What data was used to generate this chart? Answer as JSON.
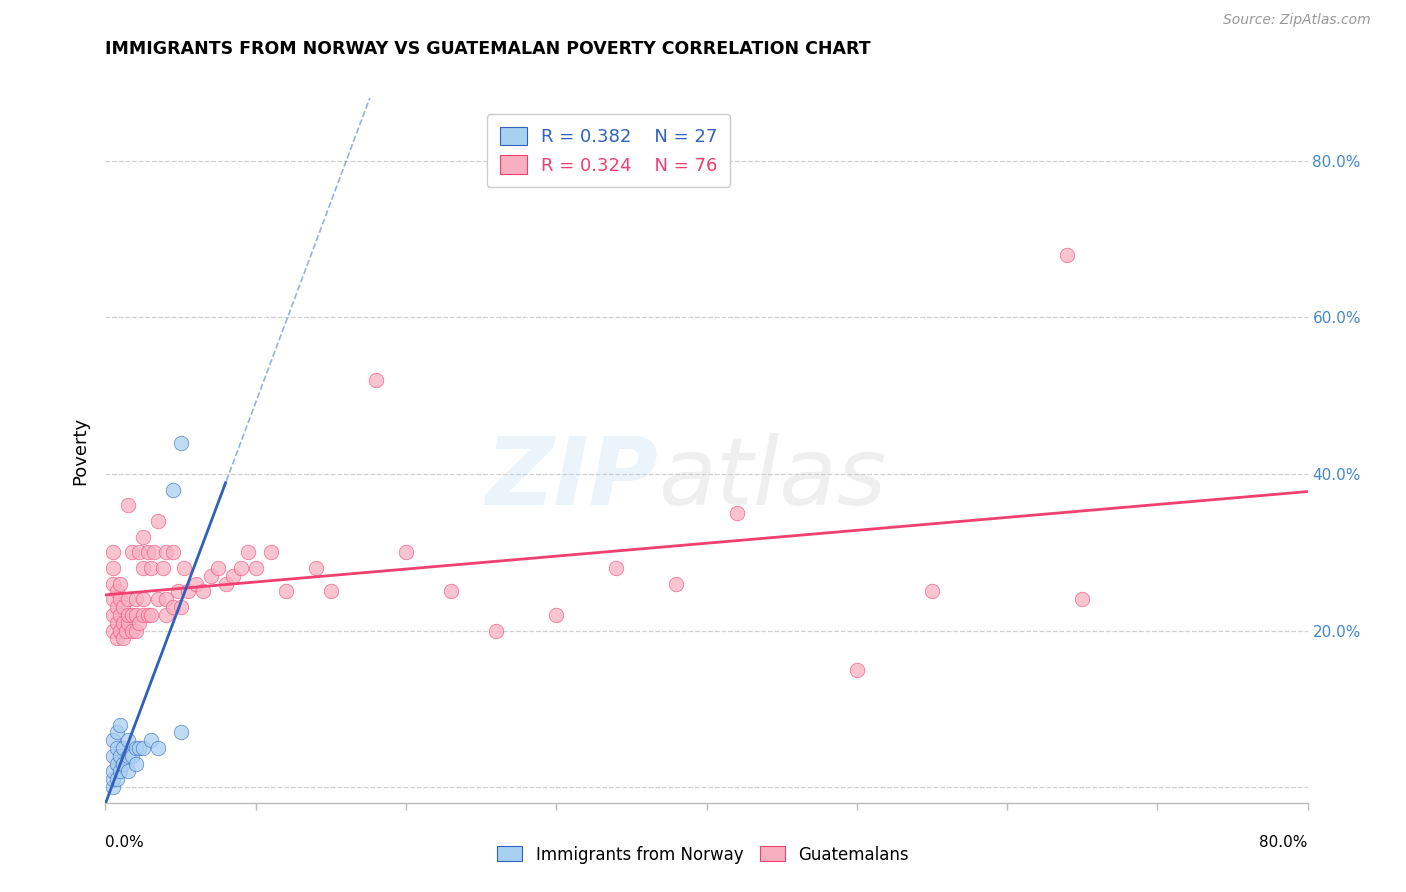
{
  "title": "IMMIGRANTS FROM NORWAY VS GUATEMALAN POVERTY CORRELATION CHART",
  "source": "Source: ZipAtlas.com",
  "ylabel": "Poverty",
  "xlim": [
    0.0,
    0.8
  ],
  "ylim": [
    -0.02,
    0.88
  ],
  "norway_R": 0.382,
  "norway_N": 27,
  "guatemalan_R": 0.324,
  "guatemalan_N": 76,
  "norway_color": "#a8d0f0",
  "guatemalan_color": "#f8b0c0",
  "norway_line_color": "#3060c0",
  "guatemalan_line_color": "#f04070",
  "background_color": "#ffffff",
  "grid_color": "#d0d0d0",
  "norway_scatter_x": [
    0.005,
    0.005,
    0.005,
    0.005,
    0.005,
    0.008,
    0.008,
    0.008,
    0.008,
    0.01,
    0.01,
    0.01,
    0.012,
    0.012,
    0.015,
    0.015,
    0.015,
    0.018,
    0.02,
    0.02,
    0.022,
    0.025,
    0.03,
    0.035,
    0.045,
    0.05,
    0.05
  ],
  "norway_scatter_y": [
    0.0,
    0.01,
    0.02,
    0.04,
    0.06,
    0.01,
    0.03,
    0.05,
    0.07,
    0.02,
    0.04,
    0.08,
    0.03,
    0.05,
    0.02,
    0.04,
    0.06,
    0.04,
    0.03,
    0.05,
    0.05,
    0.05,
    0.06,
    0.05,
    0.38,
    0.07,
    0.44
  ],
  "guatemalan_scatter_x": [
    0.005,
    0.005,
    0.005,
    0.005,
    0.005,
    0.005,
    0.008,
    0.008,
    0.008,
    0.008,
    0.01,
    0.01,
    0.01,
    0.01,
    0.012,
    0.012,
    0.012,
    0.014,
    0.015,
    0.015,
    0.015,
    0.015,
    0.018,
    0.018,
    0.018,
    0.02,
    0.02,
    0.02,
    0.022,
    0.022,
    0.025,
    0.025,
    0.025,
    0.025,
    0.028,
    0.028,
    0.03,
    0.03,
    0.032,
    0.035,
    0.035,
    0.038,
    0.04,
    0.04,
    0.04,
    0.045,
    0.045,
    0.048,
    0.05,
    0.052,
    0.055,
    0.06,
    0.065,
    0.07,
    0.075,
    0.08,
    0.085,
    0.09,
    0.095,
    0.1,
    0.11,
    0.12,
    0.14,
    0.15,
    0.18,
    0.2,
    0.23,
    0.26,
    0.3,
    0.34,
    0.38,
    0.42,
    0.5,
    0.55,
    0.64,
    0.65
  ],
  "guatemalan_scatter_y": [
    0.2,
    0.22,
    0.24,
    0.26,
    0.28,
    0.3,
    0.19,
    0.21,
    0.23,
    0.25,
    0.2,
    0.22,
    0.24,
    0.26,
    0.19,
    0.21,
    0.23,
    0.2,
    0.21,
    0.22,
    0.24,
    0.36,
    0.2,
    0.22,
    0.3,
    0.2,
    0.22,
    0.24,
    0.21,
    0.3,
    0.22,
    0.24,
    0.28,
    0.32,
    0.22,
    0.3,
    0.22,
    0.28,
    0.3,
    0.24,
    0.34,
    0.28,
    0.22,
    0.24,
    0.3,
    0.23,
    0.3,
    0.25,
    0.23,
    0.28,
    0.25,
    0.26,
    0.25,
    0.27,
    0.28,
    0.26,
    0.27,
    0.28,
    0.3,
    0.28,
    0.3,
    0.25,
    0.28,
    0.25,
    0.52,
    0.3,
    0.25,
    0.2,
    0.22,
    0.28,
    0.26,
    0.35,
    0.15,
    0.25,
    0.68,
    0.24
  ],
  "norway_line_x0": -0.01,
  "norway_line_x1": 0.38,
  "guatemalan_line_x0": -0.01,
  "guatemalan_line_x1": 0.8
}
